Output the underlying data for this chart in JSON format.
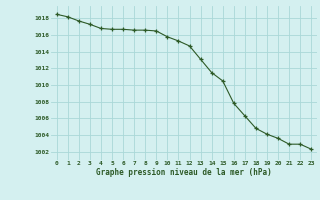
{
  "x": [
    0,
    1,
    2,
    3,
    4,
    5,
    6,
    7,
    8,
    9,
    10,
    11,
    12,
    13,
    14,
    15,
    16,
    17,
    18,
    19,
    20,
    21,
    22,
    23
  ],
  "y": [
    1018.5,
    1018.2,
    1017.7,
    1017.3,
    1016.8,
    1016.7,
    1016.7,
    1016.6,
    1016.6,
    1016.5,
    1015.8,
    1015.3,
    1014.7,
    1013.1,
    1011.5,
    1010.5,
    1007.8,
    1006.3,
    1004.8,
    1004.1,
    1003.6,
    1002.9,
    1002.9,
    1002.3
  ],
  "line_color": "#2d5a27",
  "marker": "+",
  "bg_color": "#d4f0f0",
  "grid_color": "#aad8d8",
  "text_color": "#2d5a27",
  "xlabel": "Graphe pression niveau de la mer (hPa)",
  "ylim": [
    1001,
    1019.5
  ],
  "xlim": [
    -0.5,
    23.5
  ],
  "yticks": [
    1002,
    1004,
    1006,
    1008,
    1010,
    1012,
    1014,
    1016,
    1018
  ],
  "xticks": [
    0,
    1,
    2,
    3,
    4,
    5,
    6,
    7,
    8,
    9,
    10,
    11,
    12,
    13,
    14,
    15,
    16,
    17,
    18,
    19,
    20,
    21,
    22,
    23
  ],
  "xtick_labels": [
    "0",
    "1",
    "2",
    "3",
    "4",
    "5",
    "6",
    "7",
    "8",
    "9",
    "10",
    "11",
    "12",
    "13",
    "14",
    "15",
    "16",
    "17",
    "18",
    "19",
    "20",
    "21",
    "22",
    "23"
  ]
}
